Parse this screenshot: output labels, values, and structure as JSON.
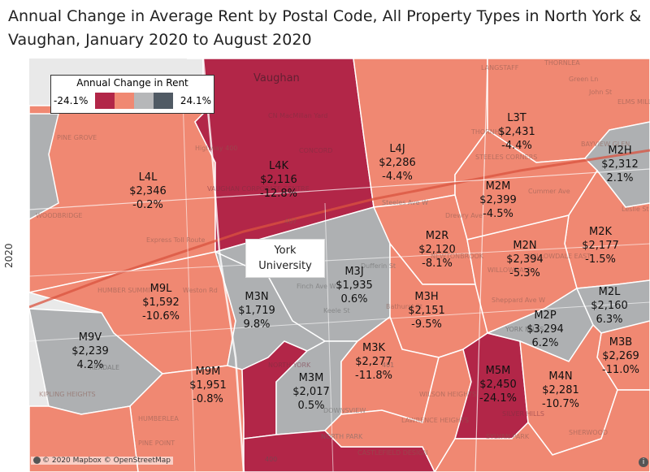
{
  "title": "Annual Change in Average Rent by Postal Code, All Property Types in North York & Vaughan, January 2020 to August 2020",
  "axis_label": "2020",
  "legend": {
    "title": "Annual Change in Rent",
    "min": "-24.1%",
    "max": "24.1%",
    "colors": [
      "#b22648",
      "#f08872",
      "#b6b7b9",
      "#505a64"
    ]
  },
  "colors": {
    "decrease_strong": "#b22648",
    "decrease": "#f08872",
    "increase": "#a9abad",
    "road": "#ffffff",
    "highway": "#e8735a"
  },
  "landmark": {
    "line1": "York",
    "line2": "University"
  },
  "areas": [
    {
      "code": "L4K",
      "rent": "$2,116",
      "change": "-12.8%"
    },
    {
      "code": "L4L",
      "rent": "$2,346",
      "change": "-0.2%"
    },
    {
      "code": "L4J",
      "rent": "$2,286",
      "change": "-4.4%"
    },
    {
      "code": "L3T",
      "rent": "$2,431",
      "change": "-4.4%"
    },
    {
      "code": "M2H",
      "rent": "$2,312",
      "change": "2.1%"
    },
    {
      "code": "M2M",
      "rent": "$2,399",
      "change": "-4.5%"
    },
    {
      "code": "M2R",
      "rent": "$2,120",
      "change": "-8.1%"
    },
    {
      "code": "M2N",
      "rent": "$2,394",
      "change": "-5.3%"
    },
    {
      "code": "M2K",
      "rent": "$2,177",
      "change": "-1.5%"
    },
    {
      "code": "M3J",
      "rent": "$1,935",
      "change": "0.6%"
    },
    {
      "code": "M9L",
      "rent": "$1,592",
      "change": "-10.6%"
    },
    {
      "code": "M3N",
      "rent": "$1,719",
      "change": "9.8%"
    },
    {
      "code": "M3H",
      "rent": "$2,151",
      "change": "-9.5%"
    },
    {
      "code": "M2L",
      "rent": "$2,160",
      "change": "6.3%"
    },
    {
      "code": "M2P",
      "rent": "$3,294",
      "change": "6.2%"
    },
    {
      "code": "M9V",
      "rent": "$2,239",
      "change": "4.2%"
    },
    {
      "code": "M3K",
      "rent": "$2,277",
      "change": "-11.8%"
    },
    {
      "code": "M3B",
      "rent": "$2,269",
      "change": "-11.0%"
    },
    {
      "code": "M5M",
      "rent": "$2,450",
      "change": "-24.1%"
    },
    {
      "code": "M9M",
      "rent": "$1,951",
      "change": "-0.8%"
    },
    {
      "code": "M3M",
      "rent": "$2,017",
      "change": "0.5%"
    },
    {
      "code": "M4N",
      "rent": "$2,281",
      "change": "-10.7%"
    }
  ],
  "place_names": [
    "Vaughan",
    "CN MacMillan Yard",
    "CONCORD",
    "VAUGHAN CORPORATE CENTRE",
    "PINE GROVE",
    "WOODBRIDGE",
    "HUMBER SUMMIT",
    "REXDALE",
    "KIPLING HEIGHTS",
    "HUMBERLEA",
    "PINE POINT",
    "THORNHILL",
    "LANGSTAFF",
    "Green Ln",
    "John St",
    "ELMS MILLES",
    "THORNLEA",
    "BAYVIEW GLEN",
    "STEELES CORNERS",
    "NEWTONBROOK",
    "WILLOWDALE",
    "Drewry Ave",
    "Cummer Ave",
    "Leslie St",
    "Finch Ave W",
    "Sheppard Ave W",
    "Steeles Ave W",
    "Express Toll Route",
    "Highway 400",
    "Weston Rd",
    "Keele St",
    "Bathurst St",
    "Dufferin St",
    "WILSON HEIGHTS",
    "LAWRENCE HEIGHTS",
    "NORTH YORK",
    "DOWNSVIEW",
    "YORK MILLS",
    "SILVER HILLS",
    "NORTH PARK",
    "CASTLEFIELD DESIGN",
    "WILLOWDALE EAST",
    "SHERWOOD",
    "SYLVAN PARK",
    "400",
    "401",
    "407"
  ],
  "credit": "© 2020 Mapbox © OpenStreetMap",
  "info_icon": "i"
}
